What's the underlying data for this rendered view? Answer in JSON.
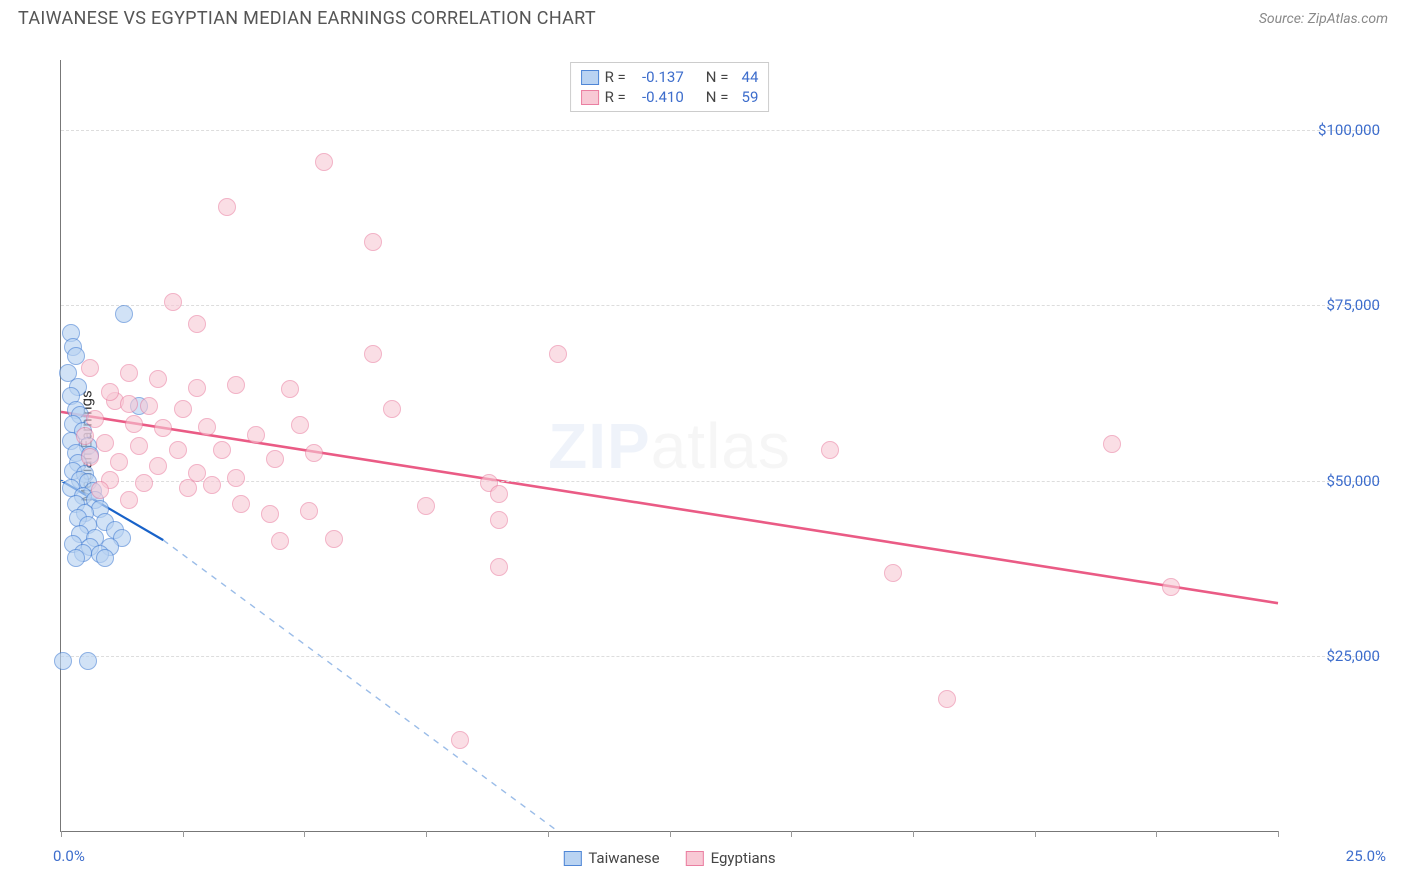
{
  "title": "TAIWANESE VS EGYPTIAN MEDIAN EARNINGS CORRELATION CHART",
  "source": "Source: ZipAtlas.com",
  "watermark": {
    "bold": "ZIP",
    "rest": "atlas"
  },
  "chart": {
    "type": "scatter",
    "background_color": "#ffffff",
    "grid_color": "#dddddd",
    "axis_color": "#777777",
    "ylabel": "Median Earnings",
    "ylabel_fontsize": 15,
    "y_ticks": [
      25000,
      50000,
      75000,
      100000
    ],
    "y_tick_labels": [
      "$25,000",
      "$50,000",
      "$75,000",
      "$100,000"
    ],
    "ylim": [
      0,
      110000
    ],
    "xlim": [
      0,
      25
    ],
    "x_tick_positions": [
      0,
      2.5,
      5,
      7.5,
      10,
      12.5,
      15,
      17.5,
      20,
      22.5,
      25
    ],
    "x_axis_left_label": "0.0%",
    "x_axis_right_label": "25.0%",
    "label_color": "#3d6dcc",
    "marker_radius": 9,
    "marker_stroke_width": 1.3,
    "series": [
      {
        "name": "Taiwanese",
        "fill_color": "#b9d3f2",
        "stroke_color": "#4f86d6",
        "fill_opacity": 0.65,
        "R": "-0.137",
        "N": "44",
        "trend": {
          "x1": 0,
          "y1": 50000,
          "x2": 2.1,
          "y2": 41500,
          "dash_x2": 10.2,
          "dash_y2": 0,
          "stroke": "#1862c9",
          "dash_stroke": "#9abce8",
          "width": 2.2
        },
        "points": [
          {
            "x": 0.2,
            "y": 71000
          },
          {
            "x": 0.25,
            "y": 69000
          },
          {
            "x": 0.3,
            "y": 67800
          },
          {
            "x": 0.15,
            "y": 65400
          },
          {
            "x": 0.35,
            "y": 63400
          },
          {
            "x": 0.2,
            "y": 62000
          },
          {
            "x": 0.3,
            "y": 60000
          },
          {
            "x": 0.4,
            "y": 59300
          },
          {
            "x": 0.25,
            "y": 58000
          },
          {
            "x": 0.45,
            "y": 57000
          },
          {
            "x": 0.2,
            "y": 55600
          },
          {
            "x": 0.55,
            "y": 55000
          },
          {
            "x": 0.3,
            "y": 54000
          },
          {
            "x": 0.6,
            "y": 53600
          },
          {
            "x": 0.35,
            "y": 52500
          },
          {
            "x": 0.25,
            "y": 51400
          },
          {
            "x": 0.5,
            "y": 51000
          },
          {
            "x": 0.4,
            "y": 50100
          },
          {
            "x": 0.55,
            "y": 49800
          },
          {
            "x": 0.2,
            "y": 49000
          },
          {
            "x": 0.65,
            "y": 48500
          },
          {
            "x": 0.45,
            "y": 47800
          },
          {
            "x": 0.7,
            "y": 47200
          },
          {
            "x": 0.3,
            "y": 46600
          },
          {
            "x": 0.8,
            "y": 46000
          },
          {
            "x": 0.5,
            "y": 45300
          },
          {
            "x": 0.35,
            "y": 44700
          },
          {
            "x": 0.9,
            "y": 44100
          },
          {
            "x": 0.55,
            "y": 43600
          },
          {
            "x": 1.1,
            "y": 43000
          },
          {
            "x": 0.4,
            "y": 42400
          },
          {
            "x": 0.7,
            "y": 41800
          },
          {
            "x": 1.25,
            "y": 41800
          },
          {
            "x": 0.25,
            "y": 41000
          },
          {
            "x": 0.6,
            "y": 40500
          },
          {
            "x": 1.0,
            "y": 40500
          },
          {
            "x": 0.45,
            "y": 39700
          },
          {
            "x": 0.8,
            "y": 39500
          },
          {
            "x": 0.3,
            "y": 38900
          },
          {
            "x": 0.9,
            "y": 38900
          },
          {
            "x": 0.05,
            "y": 24300
          },
          {
            "x": 0.55,
            "y": 24300
          },
          {
            "x": 1.6,
            "y": 60700
          },
          {
            "x": 1.3,
            "y": 73800
          }
        ]
      },
      {
        "name": "Egyptians",
        "fill_color": "#f8c9d5",
        "stroke_color": "#ea7fa1",
        "fill_opacity": 0.6,
        "R": "-0.410",
        "N": "59",
        "trend": {
          "x1": 0,
          "y1": 59800,
          "x2": 25,
          "y2": 32500,
          "stroke": "#ea5b85",
          "width": 2.6
        },
        "points": [
          {
            "x": 5.4,
            "y": 95500
          },
          {
            "x": 3.4,
            "y": 89000
          },
          {
            "x": 6.4,
            "y": 84000
          },
          {
            "x": 2.3,
            "y": 75500
          },
          {
            "x": 2.8,
            "y": 72300
          },
          {
            "x": 0.6,
            "y": 66000
          },
          {
            "x": 1.4,
            "y": 65300
          },
          {
            "x": 2.0,
            "y": 64500
          },
          {
            "x": 2.8,
            "y": 63200
          },
          {
            "x": 3.6,
            "y": 63700
          },
          {
            "x": 4.7,
            "y": 63000
          },
          {
            "x": 6.4,
            "y": 68000
          },
          {
            "x": 10.2,
            "y": 68000
          },
          {
            "x": 1.1,
            "y": 61400
          },
          {
            "x": 1.8,
            "y": 60600
          },
          {
            "x": 2.5,
            "y": 60200
          },
          {
            "x": 0.7,
            "y": 58800
          },
          {
            "x": 1.5,
            "y": 58000
          },
          {
            "x": 2.1,
            "y": 57500
          },
          {
            "x": 3.0,
            "y": 57700
          },
          {
            "x": 4.0,
            "y": 56500
          },
          {
            "x": 4.9,
            "y": 57900
          },
          {
            "x": 6.8,
            "y": 60200
          },
          {
            "x": 0.9,
            "y": 55300
          },
          {
            "x": 1.6,
            "y": 55000
          },
          {
            "x": 2.4,
            "y": 54300
          },
          {
            "x": 3.3,
            "y": 54300
          },
          {
            "x": 4.4,
            "y": 53100
          },
          {
            "x": 5.2,
            "y": 54000
          },
          {
            "x": 1.2,
            "y": 52600
          },
          {
            "x": 2.0,
            "y": 52100
          },
          {
            "x": 2.8,
            "y": 51100
          },
          {
            "x": 3.6,
            "y": 50300
          },
          {
            "x": 1.0,
            "y": 50100
          },
          {
            "x": 1.7,
            "y": 49600
          },
          {
            "x": 0.8,
            "y": 48700
          },
          {
            "x": 2.6,
            "y": 48900
          },
          {
            "x": 3.1,
            "y": 49400
          },
          {
            "x": 1.4,
            "y": 47200
          },
          {
            "x": 3.7,
            "y": 46600
          },
          {
            "x": 4.3,
            "y": 45200
          },
          {
            "x": 5.1,
            "y": 45600
          },
          {
            "x": 8.8,
            "y": 49700
          },
          {
            "x": 9.0,
            "y": 44400
          },
          {
            "x": 9.0,
            "y": 48100
          },
          {
            "x": 7.5,
            "y": 46400
          },
          {
            "x": 4.5,
            "y": 41400
          },
          {
            "x": 5.6,
            "y": 41700
          },
          {
            "x": 9.0,
            "y": 37600
          },
          {
            "x": 15.8,
            "y": 54400
          },
          {
            "x": 17.1,
            "y": 36800
          },
          {
            "x": 21.6,
            "y": 55200
          },
          {
            "x": 22.8,
            "y": 34800
          },
          {
            "x": 18.2,
            "y": 18800
          },
          {
            "x": 8.2,
            "y": 13000
          },
          {
            "x": 1.0,
            "y": 62700
          },
          {
            "x": 1.4,
            "y": 60900
          },
          {
            "x": 0.5,
            "y": 56300
          },
          {
            "x": 0.6,
            "y": 53400
          }
        ]
      }
    ]
  },
  "legend_top": {
    "r_label": "R =",
    "n_label": "N ="
  }
}
